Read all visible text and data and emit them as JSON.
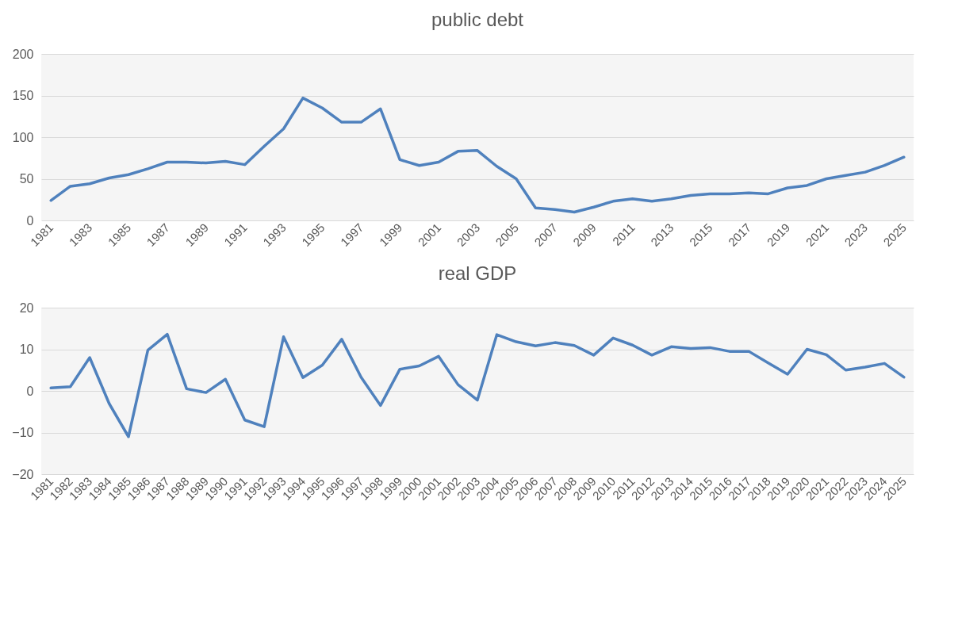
{
  "chart_data": [
    {
      "type": "line",
      "title": "public debt",
      "categories": [
        "1981",
        null,
        "1983",
        null,
        "1985",
        null,
        "1987",
        null,
        "1989",
        null,
        "1991",
        null,
        "1993",
        null,
        "1995",
        null,
        "1997",
        null,
        "1999",
        null,
        "2001",
        null,
        "2003",
        null,
        "2005",
        null,
        "2007",
        null,
        "2009",
        null,
        "2011",
        null,
        "2013",
        null,
        "2015",
        null,
        "2017",
        null,
        "2019",
        null,
        "2021",
        null,
        "2023",
        null,
        "2025"
      ],
      "series": [
        {
          "color": "#4f81bd",
          "values": [
            24,
            41,
            44,
            51,
            55,
            62,
            70,
            70,
            69,
            71,
            67,
            89,
            110,
            147,
            135,
            118,
            118,
            134,
            73,
            66,
            70,
            83,
            84,
            65,
            50,
            15,
            13,
            10,
            16,
            23,
            26,
            23,
            26,
            30,
            32,
            32,
            33,
            32,
            39,
            42,
            50,
            54,
            58,
            66,
            76
          ]
        }
      ],
      "ylim": [
        0,
        200
      ],
      "yticks": [
        0,
        50,
        100,
        150,
        200
      ],
      "grid": "y"
    },
    {
      "type": "line",
      "title": "real GDP",
      "categories": [
        "1981",
        "1982",
        "1983",
        "1984",
        "1985",
        "1986",
        "1987",
        "1988",
        "1989",
        "1990",
        "1991",
        "1992",
        "1993",
        "1994",
        "1995",
        "1996",
        "1997",
        "1998",
        "1999",
        "2000",
        "2001",
        "2002",
        "2003",
        "2004",
        "2005",
        "2006",
        "2007",
        "2008",
        "2009",
        "2010",
        "2011",
        "2012",
        "2013",
        "2014",
        "2015",
        "2016",
        "2017",
        "2018",
        "2019",
        "2020",
        "2021",
        "2022",
        "2023",
        "2024",
        "2025"
      ],
      "series": [
        {
          "color": "#4f81bd",
          "values": [
            0.7,
            1,
            8,
            -3,
            -11,
            9.8,
            13.6,
            0.5,
            -0.4,
            2.8,
            -7,
            -8.6,
            13,
            3.2,
            6.2,
            12.4,
            3.3,
            -3.5,
            5.2,
            6,
            8.3,
            1.5,
            -2.2,
            13.5,
            11.8,
            10.8,
            11.6,
            10.9,
            8.6,
            12.7,
            11,
            8.6,
            10.6,
            10.2,
            10.4,
            9.5,
            9.5,
            6.7,
            4,
            10,
            8.7,
            5,
            5.7,
            6.6,
            3.3
          ]
        }
      ],
      "ylim": [
        -20,
        20
      ],
      "yticks": [
        -20,
        -10,
        0,
        10,
        20
      ],
      "grid": "y"
    }
  ]
}
